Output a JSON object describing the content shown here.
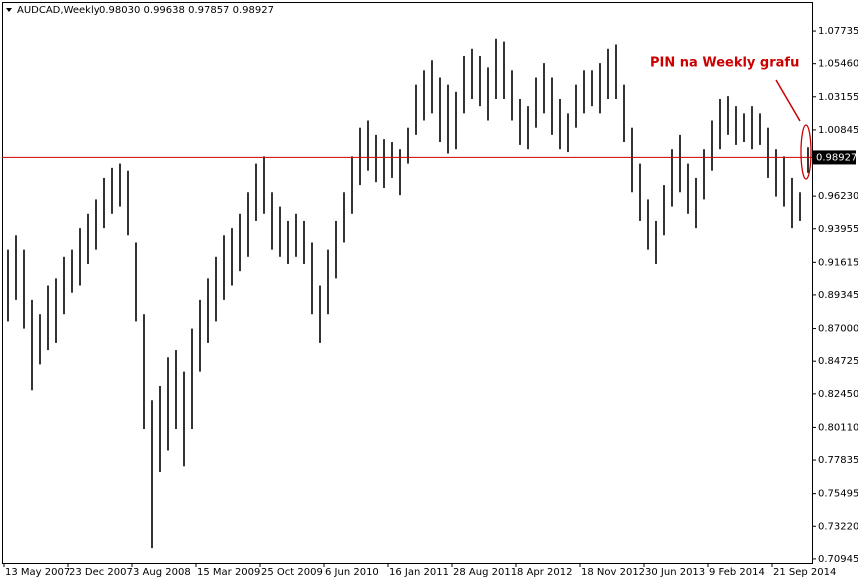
{
  "header": {
    "symbol": "AUDCAD,Weekly",
    "ohlc": "0.98030 0.99638 0.97857 0.98927"
  },
  "chart_data": {
    "type": "ohlc",
    "x": [
      2,
      6,
      10,
      14,
      18,
      22,
      26,
      30,
      34,
      38,
      42,
      46,
      50,
      54,
      58,
      62,
      66,
      70,
      74,
      78,
      82,
      86,
      90,
      94,
      98,
      102,
      106,
      110,
      114,
      118,
      122,
      126,
      130,
      134,
      138,
      142,
      146,
      150,
      154,
      158,
      162,
      166,
      170,
      174,
      178,
      182,
      186,
      190,
      194,
      198,
      202,
      206,
      210,
      214,
      218,
      222,
      226,
      230,
      234,
      238,
      242,
      246,
      250,
      254,
      258,
      262,
      266,
      270,
      274,
      278,
      282,
      286,
      290,
      294,
      298,
      302,
      306,
      310,
      314,
      318,
      322,
      326,
      330,
      334,
      338,
      342,
      346,
      350,
      354,
      358,
      362,
      366,
      370,
      374,
      378,
      382,
      386,
      390,
      394,
      398,
      402
    ],
    "high": [
      0.925,
      0.935,
      0.925,
      0.89,
      0.88,
      0.9,
      0.905,
      0.92,
      0.925,
      0.94,
      0.95,
      0.96,
      0.975,
      0.982,
      0.985,
      0.98,
      0.93,
      0.88,
      0.82,
      0.83,
      0.85,
      0.855,
      0.84,
      0.87,
      0.89,
      0.905,
      0.92,
      0.935,
      0.94,
      0.95,
      0.965,
      0.985,
      0.99,
      0.965,
      0.955,
      0.945,
      0.95,
      0.945,
      0.93,
      0.9,
      0.925,
      0.945,
      0.965,
      0.99,
      1.01,
      1.015,
      1.005,
      1.002,
      1.0,
      0.995,
      1.01,
      1.04,
      1.05,
      1.057,
      1.045,
      1.04,
      1.035,
      1.06,
      1.065,
      1.06,
      1.052,
      1.072,
      1.07,
      1.05,
      1.03,
      1.025,
      1.045,
      1.055,
      1.045,
      1.03,
      1.02,
      1.04,
      1.05,
      1.05,
      1.055,
      1.065,
      1.068,
      1.04,
      1.01,
      0.985,
      0.96,
      0.945,
      0.97,
      0.995,
      1.005,
      0.985,
      0.975,
      0.995,
      1.015,
      1.03,
      1.032,
      1.025,
      1.02,
      1.025,
      1.02,
      1.01,
      0.995,
      0.99,
      0.975,
      0.965,
      0.99638
    ],
    "low": [
      0.875,
      0.89,
      0.87,
      0.827,
      0.845,
      0.855,
      0.86,
      0.88,
      0.895,
      0.9,
      0.915,
      0.925,
      0.94,
      0.95,
      0.955,
      0.935,
      0.875,
      0.8,
      0.717,
      0.77,
      0.785,
      0.8,
      0.774,
      0.8,
      0.84,
      0.86,
      0.875,
      0.89,
      0.9,
      0.91,
      0.92,
      0.945,
      0.95,
      0.925,
      0.92,
      0.915,
      0.92,
      0.915,
      0.88,
      0.86,
      0.88,
      0.905,
      0.93,
      0.95,
      0.97,
      0.98,
      0.972,
      0.968,
      0.975,
      0.963,
      0.985,
      1.005,
      1.015,
      1.02,
      1.0,
      0.992,
      0.995,
      1.02,
      1.03,
      1.025,
      1.015,
      1.03,
      1.03,
      1.015,
      0.998,
      0.995,
      1.01,
      1.02,
      1.005,
      0.995,
      0.993,
      1.01,
      1.02,
      1.025,
      1.02,
      1.03,
      1.03,
      1.0,
      0.965,
      0.945,
      0.925,
      0.915,
      0.935,
      0.955,
      0.965,
      0.95,
      0.94,
      0.96,
      0.98,
      0.995,
      1.005,
      0.998,
      1.0,
      0.995,
      0.998,
      0.975,
      0.962,
      0.955,
      0.94,
      0.945,
      0.97857
    ],
    "xlim": [
      -1,
      404
    ],
    "xticks": [
      {
        "value": 0,
        "label": "13 May 2007"
      },
      {
        "value": 32,
        "label": "23 Dec 2007"
      },
      {
        "value": 64,
        "label": "3 Aug 2008"
      },
      {
        "value": 96,
        "label": "15 Mar 2009"
      },
      {
        "value": 128,
        "label": "25 Oct 2009"
      },
      {
        "value": 160,
        "label": "6 Jun 2010"
      },
      {
        "value": 192,
        "label": "16 Jan 2011"
      },
      {
        "value": 224,
        "label": "28 Aug 2011"
      },
      {
        "value": 256,
        "label": "8 Apr 2012"
      },
      {
        "value": 288,
        "label": "18 Nov 2012"
      },
      {
        "value": 320,
        "label": "30 Jun 2013"
      },
      {
        "value": 352,
        "label": "9 Feb 2014"
      },
      {
        "value": 384,
        "label": "21 Sep 2014"
      }
    ],
    "ylim": [
      0.7066,
      1.099
    ],
    "yticks": [
      1.07735,
      {
        "value": 1.0546,
        "label": "1.05460"
      },
      1.03155,
      1.00845,
      {
        "value": 0.9623,
        "label": "0.96230"
      },
      0.93955,
      0.91615,
      0.89345,
      {
        "value": 0.87,
        "label": "0.87000"
      },
      0.84725,
      {
        "value": 0.8245,
        "label": "0.82450"
      },
      {
        "value": 0.8011,
        "label": "0.80110"
      },
      0.77835,
      0.75495,
      {
        "value": 0.7322,
        "label": "0.73220"
      },
      0.70945
    ],
    "current_price": 0.98927,
    "color": "#000000",
    "line_color": "#cc0000",
    "annotation": "PIN na Weekly grafu"
  }
}
